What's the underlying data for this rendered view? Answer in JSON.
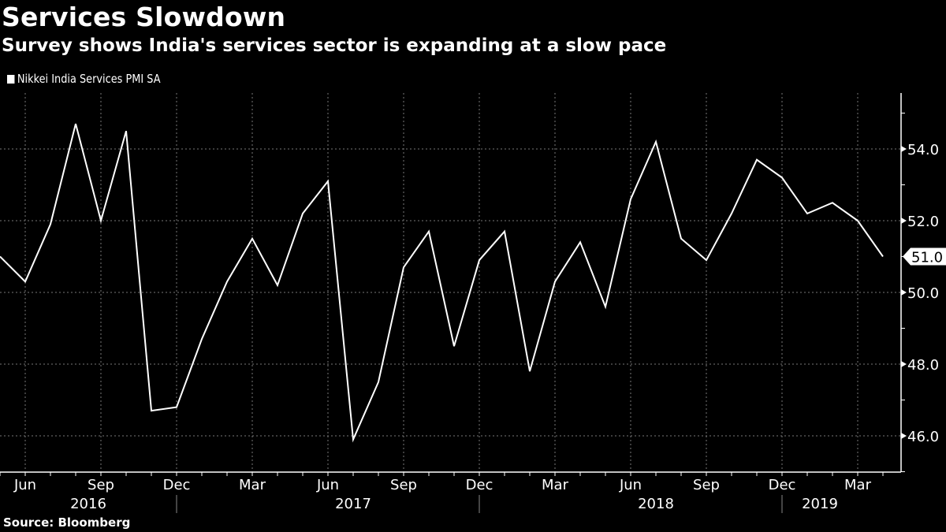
{
  "title": "Services Slowdown",
  "subtitle": "Survey shows India's services sector is expanding at a slow pace",
  "source": "Source: Bloomberg",
  "chart_data": {
    "type": "line",
    "title": "Services Slowdown",
    "subtitle": "Survey shows India's services sector is expanding at a slow pace",
    "xlabel": "",
    "ylabel": "",
    "ylim": [
      45,
      55.5
    ],
    "yticks": [
      46.0,
      48.0,
      50.0,
      52.0,
      54.0
    ],
    "ytick_labels": [
      "46.0",
      "48.0",
      "50.0",
      "52.0",
      "54.0"
    ],
    "y_axis_side": "right",
    "grid": true,
    "legend_position": "top-left",
    "x": [
      "2016-05",
      "2016-06",
      "2016-07",
      "2016-08",
      "2016-09",
      "2016-10",
      "2016-11",
      "2016-12",
      "2017-01",
      "2017-02",
      "2017-03",
      "2017-04",
      "2017-05",
      "2017-06",
      "2017-07",
      "2017-08",
      "2017-09",
      "2017-10",
      "2017-11",
      "2017-12",
      "2018-01",
      "2018-02",
      "2018-03",
      "2018-04",
      "2018-05",
      "2018-06",
      "2018-07",
      "2018-08",
      "2018-09",
      "2018-10",
      "2018-11",
      "2018-12",
      "2019-01",
      "2019-02",
      "2019-03",
      "2019-04"
    ],
    "x_tick_labels": [
      {
        "month_index": 1,
        "label": "Jun"
      },
      {
        "month_index": 4,
        "label": "Sep"
      },
      {
        "month_index": 7,
        "label": "Dec"
      },
      {
        "month_index": 10,
        "label": "Mar"
      },
      {
        "month_index": 13,
        "label": "Jun"
      },
      {
        "month_index": 16,
        "label": "Sep"
      },
      {
        "month_index": 19,
        "label": "Dec"
      },
      {
        "month_index": 22,
        "label": "Mar"
      },
      {
        "month_index": 25,
        "label": "Jun"
      },
      {
        "month_index": 28,
        "label": "Sep"
      },
      {
        "month_index": 31,
        "label": "Dec"
      },
      {
        "month_index": 34,
        "label": "Mar"
      }
    ],
    "year_labels": [
      {
        "center_index": 4,
        "label": "2016"
      },
      {
        "center_index": 14.5,
        "label": "2017"
      },
      {
        "center_index": 26.5,
        "label": "2018"
      },
      {
        "center_index": 33,
        "label": "2019"
      }
    ],
    "year_separators": [
      7.5,
      19.5,
      31.5
    ],
    "series": [
      {
        "name": "Nikkei India Services PMI SA",
        "color": "#ffffff",
        "values": [
          51.0,
          50.3,
          51.9,
          54.7,
          52.0,
          54.5,
          46.7,
          46.8,
          48.7,
          50.3,
          51.5,
          50.2,
          52.2,
          53.1,
          45.9,
          47.5,
          50.7,
          51.7,
          48.5,
          50.9,
          51.7,
          47.8,
          50.3,
          51.4,
          49.6,
          52.6,
          54.2,
          51.5,
          50.9,
          52.2,
          53.7,
          53.2,
          52.2,
          52.5,
          52.0,
          51.0
        ]
      }
    ],
    "last_value_label": "51.0"
  }
}
